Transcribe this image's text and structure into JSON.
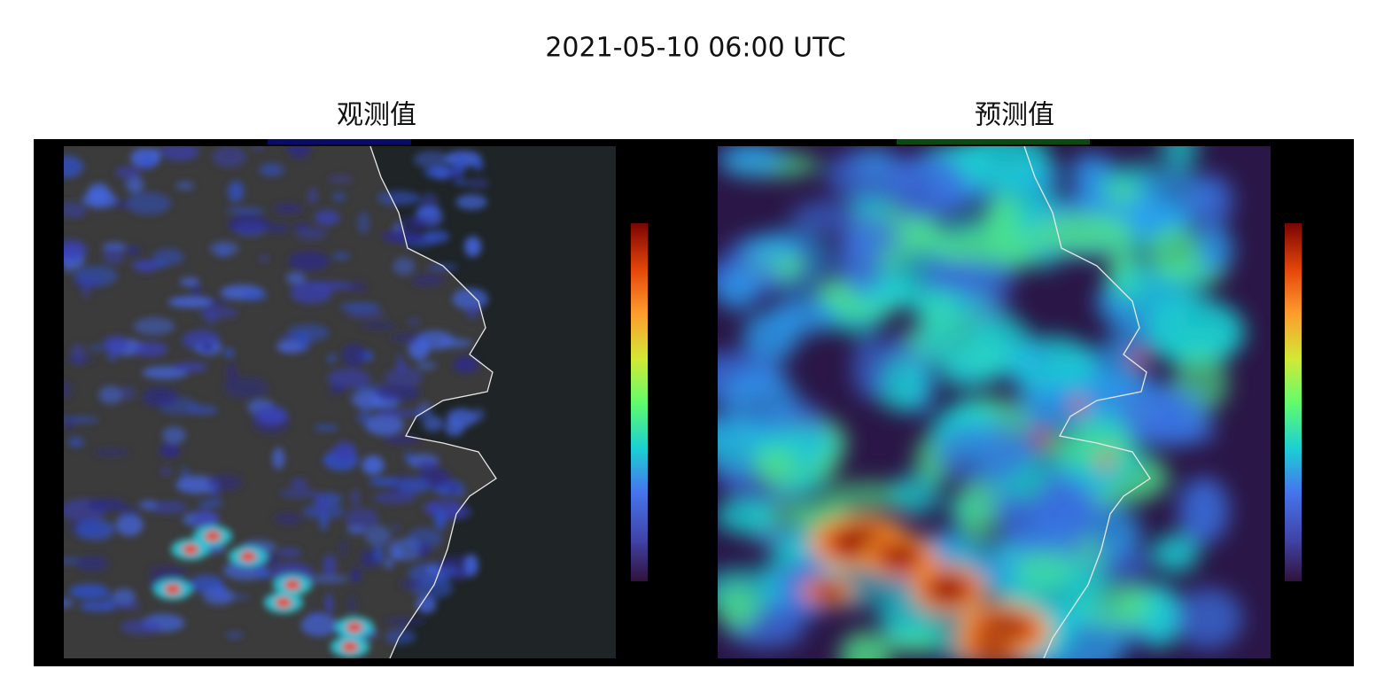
{
  "header": {
    "title": "2021-05-10 06:00 UTC"
  },
  "panels": [
    {
      "title": "观测值"
    },
    {
      "title": "预测值"
    }
  ]
}
